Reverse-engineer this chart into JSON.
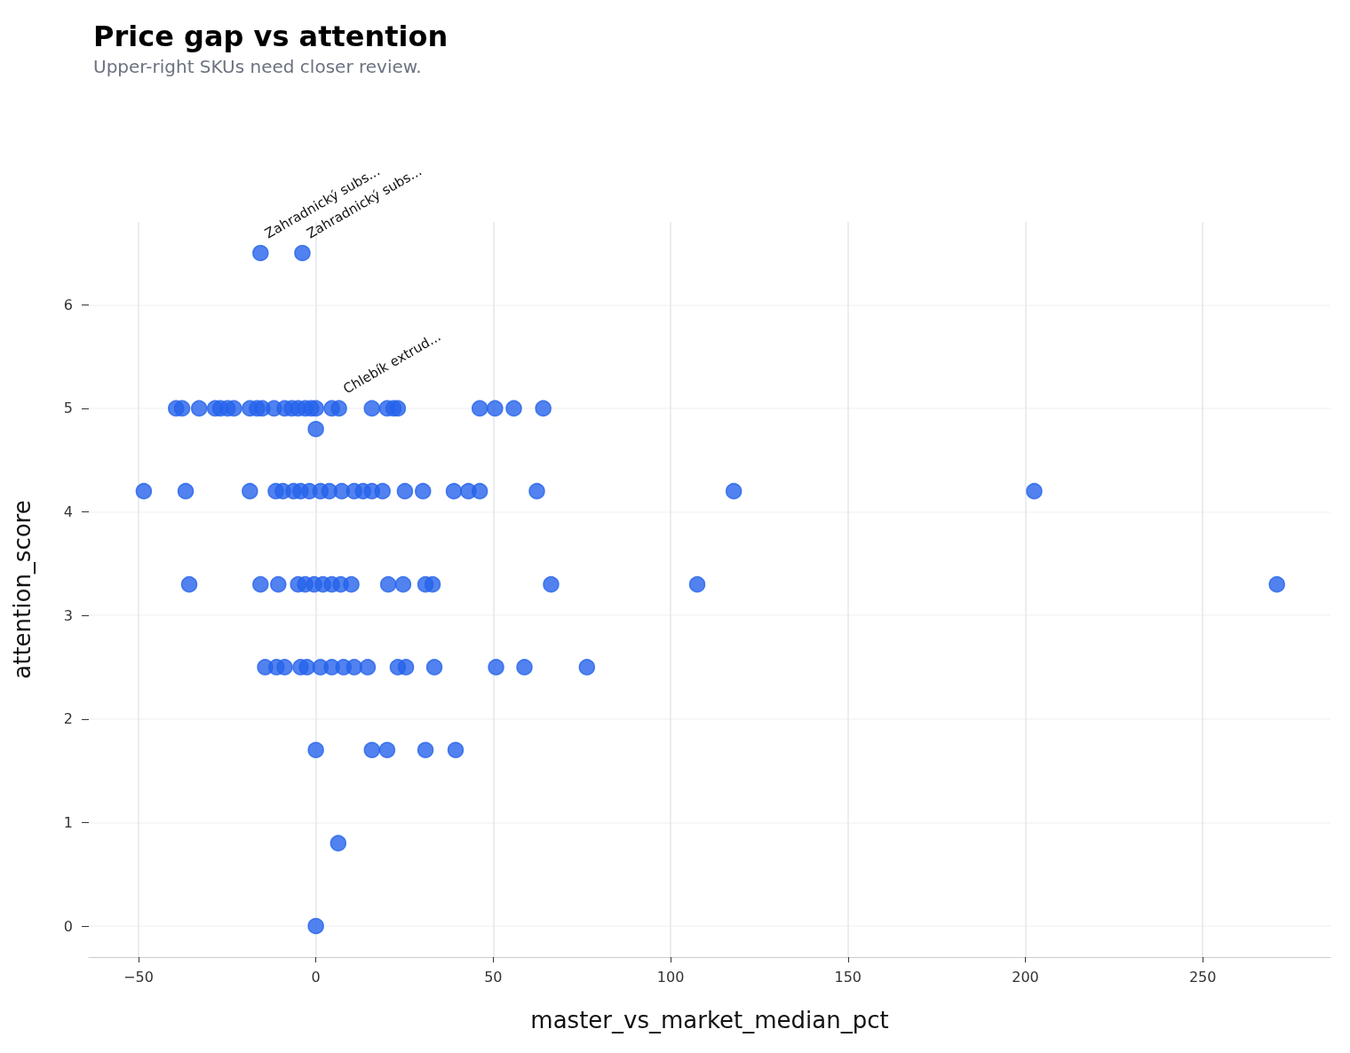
{
  "chart_data": {
    "type": "scatter",
    "title": "Price gap vs attention",
    "subtitle": "Upper-right SKUs need closer review.",
    "xlabel": "master_vs_market_median_pct",
    "ylabel": "attention_score",
    "xlim": [
      -64,
      286
    ],
    "ylim": [
      -0.3,
      6.8
    ],
    "xticks": [
      -50,
      0,
      50,
      100,
      150,
      200,
      250
    ],
    "yticks": [
      0,
      1,
      2,
      3,
      4,
      5,
      6
    ],
    "grid": true,
    "marker": "circle",
    "series": [
      {
        "color": "#2563eb",
        "x": [
          -15.6,
          -3.8,
          -39.4,
          -37.7,
          -32.9,
          -28.4,
          -26.9,
          -24.9,
          -23.1,
          -18.6,
          -16.6,
          -15.1,
          -11.8,
          -8.8,
          -6.8,
          -5,
          -3,
          -1.3,
          0,
          4.5,
          6.5,
          15.8,
          20.1,
          21.9,
          23.1,
          46.2,
          50.5,
          55.8,
          64.1,
          0,
          -48.5,
          -36.7,
          -18.6,
          -11.3,
          -9.3,
          -6.3,
          -4.3,
          -1.8,
          1.3,
          3.8,
          7.3,
          10.8,
          13.3,
          15.8,
          18.8,
          25.1,
          30.2,
          38.9,
          43,
          46.2,
          62.3,
          117.8,
          202.5,
          -35.7,
          -15.6,
          -10.6,
          -5,
          -3,
          -0.5,
          2,
          4.5,
          7,
          10,
          20.4,
          24.6,
          30.9,
          32.9,
          66.3,
          107.5,
          270.9,
          -14.3,
          -11.1,
          -8.8,
          -4.3,
          -2.5,
          1.3,
          4.5,
          7.8,
          10.8,
          14.6,
          23.1,
          25.4,
          33.4,
          50.8,
          58.8,
          76.4,
          0,
          15.8,
          20.1,
          30.9,
          39.4,
          6.3,
          0
        ],
        "values": [
          6.5,
          6.5,
          5,
          5,
          5,
          5,
          5,
          5,
          5,
          5,
          5,
          5,
          5,
          5,
          5,
          5,
          5,
          5,
          5,
          5,
          5,
          5,
          5,
          5,
          5,
          5,
          5,
          5,
          5,
          4.8,
          4.2,
          4.2,
          4.2,
          4.2,
          4.2,
          4.2,
          4.2,
          4.2,
          4.2,
          4.2,
          4.2,
          4.2,
          4.2,
          4.2,
          4.2,
          4.2,
          4.2,
          4.2,
          4.2,
          4.2,
          4.2,
          4.2,
          4.2,
          3.3,
          3.3,
          3.3,
          3.3,
          3.3,
          3.3,
          3.3,
          3.3,
          3.3,
          3.3,
          3.3,
          3.3,
          3.3,
          3.3,
          3.3,
          3.3,
          3.3,
          2.5,
          2.5,
          2.5,
          2.5,
          2.5,
          2.5,
          2.5,
          2.5,
          2.5,
          2.5,
          2.5,
          2.5,
          2.5,
          2.5,
          2.5,
          2.5,
          1.7,
          1.7,
          1.7,
          1.7,
          1.7,
          0.8,
          0
        ]
      }
    ],
    "annotations": [
      {
        "text": "Zahradnický subs...",
        "x": -15.6,
        "y": 6.5
      },
      {
        "text": "Zahradnický subs...",
        "x": -3.8,
        "y": 6.5
      },
      {
        "text": "Chlebík extrud...",
        "x": 6.5,
        "y": 5
      }
    ]
  }
}
